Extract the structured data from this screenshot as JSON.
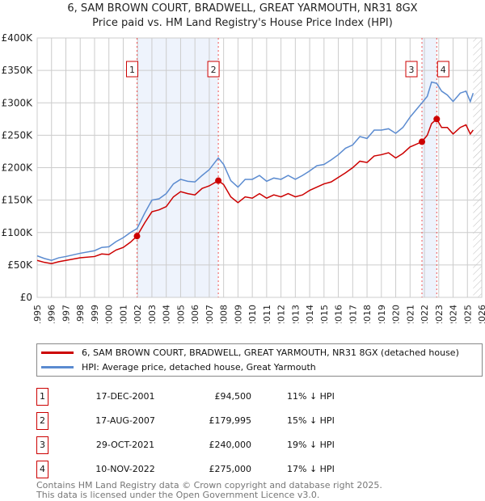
{
  "chart_data": {
    "type": "line",
    "title": "6, SAM BROWN COURT, BRADWELL, GREAT YARMOUTH, NR31 8GX",
    "subtitle": "Price paid vs. HM Land Registry's House Price Index (HPI)",
    "xlim": [
      1995,
      2026
    ],
    "ylim": [
      0,
      400000
    ],
    "x_ticks": [
      "1995",
      "1996",
      "1997",
      "1998",
      "1999",
      "2000",
      "2001",
      "2002",
      "2003",
      "2004",
      "2005",
      "2006",
      "2007",
      "2008",
      "2009",
      "2010",
      "2011",
      "2012",
      "2013",
      "2014",
      "2015",
      "2016",
      "2017",
      "2018",
      "2019",
      "2020",
      "2021",
      "2022",
      "2023",
      "2024",
      "2025",
      "2026"
    ],
    "y_ticks": [
      {
        "v": 0,
        "label": "£0"
      },
      {
        "v": 50000,
        "label": "£50K"
      },
      {
        "v": 100000,
        "label": "£100K"
      },
      {
        "v": 150000,
        "label": "£150K"
      },
      {
        "v": 200000,
        "label": "£200K"
      },
      {
        "v": 250000,
        "label": "£250K"
      },
      {
        "v": 300000,
        "label": "£300K"
      },
      {
        "v": 350000,
        "label": "£350K"
      },
      {
        "v": 400000,
        "label": "£400K"
      }
    ],
    "grid": true,
    "shaded_ranges": [
      [
        2001.96,
        2007.63
      ],
      [
        2021.83,
        2022.86
      ]
    ],
    "forecast_hatch_from": 2025.4,
    "series": [
      {
        "name": "6, SAM BROWN COURT, BRADWELL, GREAT YARMOUTH, NR31 8GX (detached house)",
        "color": "#cc0000",
        "x": [
          1995,
          1995.5,
          1996,
          1996.5,
          1997,
          1998,
          1999,
          1999.5,
          2000,
          2000.5,
          2001,
          2001.5,
          2001.96,
          2002.5,
          2003,
          2003.5,
          2004,
          2004.5,
          2005,
          2005.5,
          2006,
          2006.5,
          2007,
          2007.63,
          2008,
          2008.5,
          2009,
          2009.5,
          2010,
          2010.5,
          2011,
          2011.5,
          2012,
          2012.5,
          2013,
          2013.5,
          2014,
          2014.5,
          2015,
          2015.5,
          2016,
          2016.5,
          2017,
          2017.5,
          2018,
          2018.5,
          2019,
          2019.5,
          2020,
          2020.5,
          2021,
          2021.83,
          2022.2,
          2022.5,
          2022.86,
          2023.2,
          2023.6,
          2024,
          2024.5,
          2024.9,
          2025.2,
          2025.4
        ],
        "y": [
          57000,
          54000,
          52000,
          55000,
          57000,
          61000,
          63000,
          67000,
          66000,
          73000,
          77000,
          85000,
          94500,
          115000,
          132000,
          135000,
          140000,
          155000,
          163000,
          160000,
          158000,
          168000,
          172000,
          180000,
          174000,
          155000,
          146000,
          155000,
          153000,
          160000,
          153000,
          158000,
          155000,
          160000,
          155000,
          158000,
          165000,
          170000,
          175000,
          178000,
          185000,
          192000,
          200000,
          210000,
          208000,
          218000,
          220000,
          223000,
          215000,
          222000,
          232000,
          240000,
          250000,
          268000,
          275000,
          262000,
          262000,
          252000,
          262000,
          266000,
          252000,
          258000
        ]
      },
      {
        "name": "HPI: Average price, detached house, Great Yarmouth",
        "color": "#5b8bd0",
        "x": [
          1995,
          1995.5,
          1996,
          1996.5,
          1997,
          1998,
          1999,
          1999.5,
          2000,
          2000.5,
          2001,
          2001.5,
          2001.96,
          2002.5,
          2003,
          2003.5,
          2004,
          2004.5,
          2005,
          2005.5,
          2006,
          2006.5,
          2007,
          2007.63,
          2008,
          2008.5,
          2009,
          2009.5,
          2010,
          2010.5,
          2011,
          2011.5,
          2012,
          2012.5,
          2013,
          2013.5,
          2014,
          2014.5,
          2015,
          2015.5,
          2016,
          2016.5,
          2017,
          2017.5,
          2018,
          2018.5,
          2019,
          2019.5,
          2020,
          2020.5,
          2021,
          2021.83,
          2022.2,
          2022.5,
          2022.86,
          2023.2,
          2023.6,
          2024,
          2024.5,
          2024.9,
          2025.2,
          2025.4
        ],
        "y": [
          64000,
          60000,
          57000,
          61000,
          63000,
          68000,
          72000,
          77000,
          78000,
          86000,
          92000,
          100000,
          106000,
          130000,
          150000,
          152000,
          160000,
          175000,
          182000,
          179000,
          178000,
          188000,
          197000,
          215000,
          205000,
          180000,
          170000,
          182000,
          182000,
          188000,
          179000,
          184000,
          182000,
          188000,
          182000,
          188000,
          195000,
          203000,
          205000,
          212000,
          220000,
          230000,
          235000,
          248000,
          245000,
          258000,
          258000,
          260000,
          253000,
          262000,
          278000,
          300000,
          310000,
          332000,
          330000,
          318000,
          312000,
          302000,
          315000,
          318000,
          302000,
          315000
        ]
      }
    ],
    "markers": [
      {
        "label": "1",
        "x": 2001.96,
        "y": 94500
      },
      {
        "label": "2",
        "x": 2007.63,
        "y": 179995
      },
      {
        "label": "3",
        "x": 2021.83,
        "y": 240000
      },
      {
        "label": "4",
        "x": 2022.86,
        "y": 275000
      }
    ]
  },
  "legend": {
    "property": "6, SAM BROWN COURT, BRADWELL, GREAT YARMOUTH, NR31 8GX (detached house)",
    "hpi": "HPI: Average price, detached house, Great Yarmouth"
  },
  "sales": [
    {
      "num": "1",
      "date": "17-DEC-2001",
      "price": "£94,500",
      "delta": "11% ↓ HPI"
    },
    {
      "num": "2",
      "date": "17-AUG-2007",
      "price": "£179,995",
      "delta": "15% ↓ HPI"
    },
    {
      "num": "3",
      "date": "29-OCT-2021",
      "price": "£240,000",
      "delta": "19% ↓ HPI"
    },
    {
      "num": "4",
      "date": "10-NOV-2022",
      "price": "£275,000",
      "delta": "17% ↓ HPI"
    }
  ],
  "footer": {
    "line1": "Contains HM Land Registry data © Crown copyright and database right 2025.",
    "line2": "This data is licensed under the Open Government Licence v3.0."
  }
}
